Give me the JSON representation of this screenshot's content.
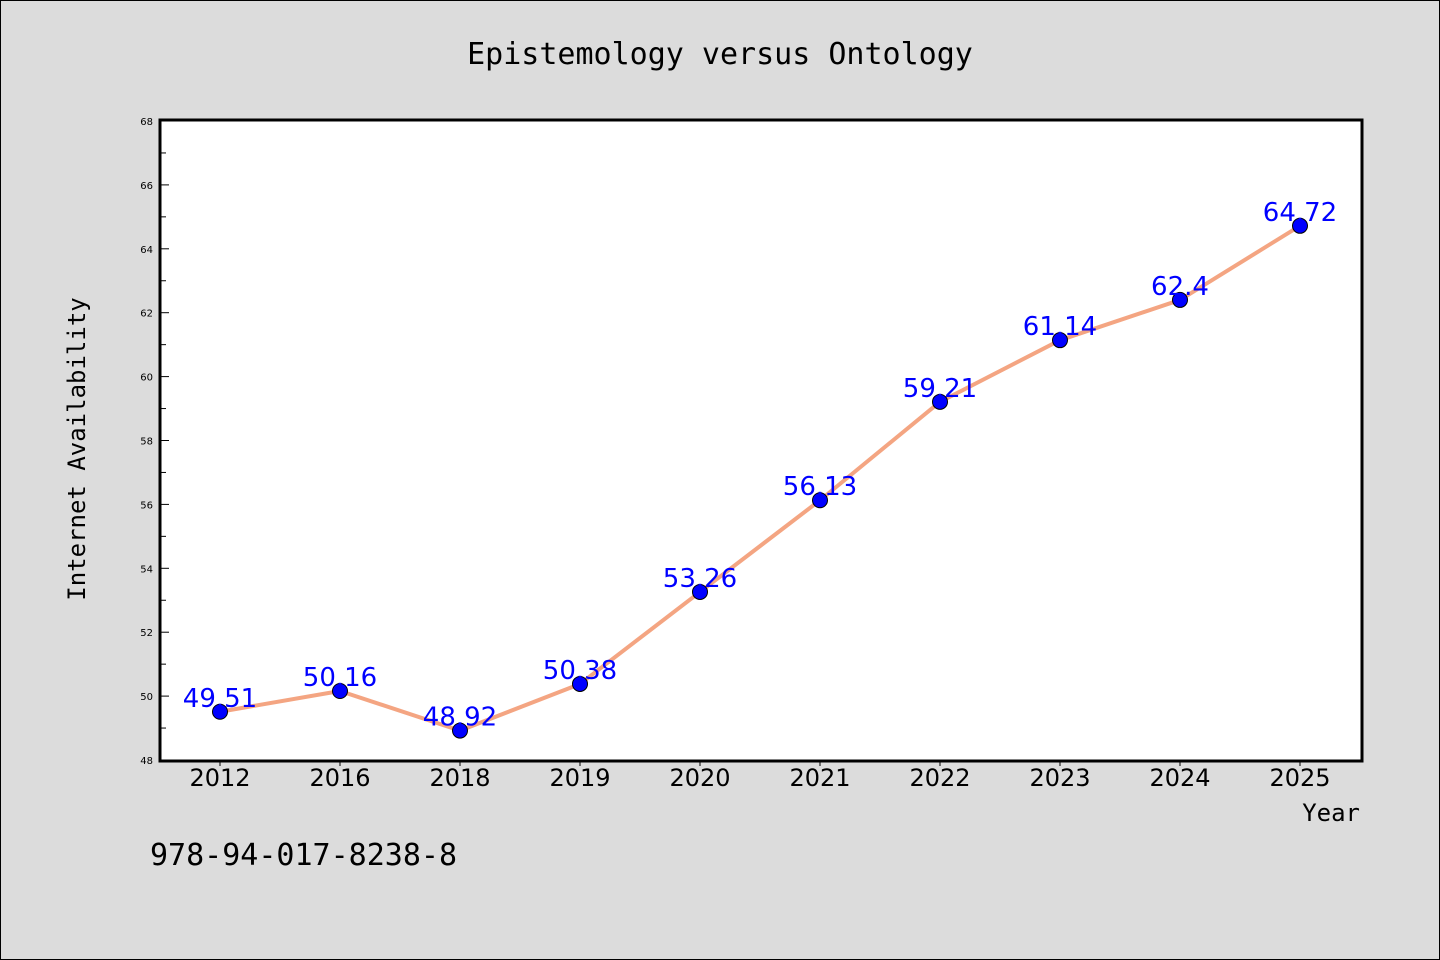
{
  "figure": {
    "isbn": "978-94-017-8238-8",
    "background_color": "#dcdcdc",
    "plot_background_color": "#ffffff"
  },
  "chart_data": {
    "type": "line",
    "title": "Epistemology versus Ontology",
    "xlabel": "Year",
    "ylabel": "Internet Availability",
    "categories": [
      "2012",
      "2016",
      "2018",
      "2019",
      "2020",
      "2021",
      "2022",
      "2023",
      "2024",
      "2025"
    ],
    "series": [
      {
        "values": [
          49.51,
          50.16,
          48.92,
          50.38,
          53.26,
          56.13,
          59.21,
          61.14,
          62.4,
          64.72
        ],
        "data_labels": [
          "49.51",
          "50.16",
          "48.92",
          "50.38",
          "53.26",
          "56.13",
          "59.21",
          "61.14",
          "62.4",
          "64.72"
        ],
        "line_color": "#f4a582",
        "marker_color": "#0000ff",
        "label_color": "#0000ff"
      }
    ],
    "ylim": [
      48,
      68
    ],
    "yticks": [
      48,
      50,
      52,
      54,
      56,
      58,
      60,
      62,
      64,
      66,
      68
    ],
    "ytick_labels": [
      "48",
      "50",
      "52",
      "54",
      "56",
      "58",
      "60",
      "62",
      "64",
      "66",
      "68"
    ],
    "grid": false,
    "legend": "none"
  }
}
